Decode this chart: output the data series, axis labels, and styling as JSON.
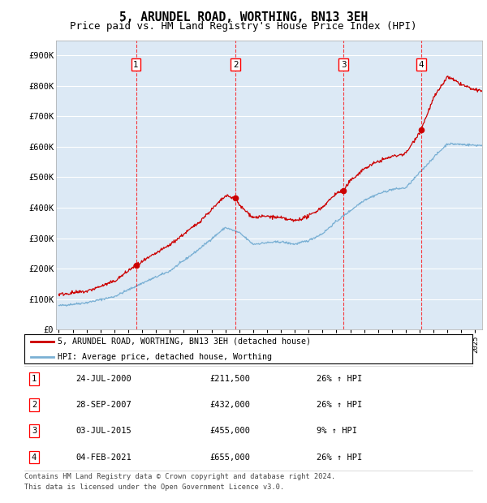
{
  "title": "5, ARUNDEL ROAD, WORTHING, BN13 3EH",
  "subtitle": "Price paid vs. HM Land Registry's House Price Index (HPI)",
  "ylim": [
    0,
    950000
  ],
  "yticks": [
    0,
    100000,
    200000,
    300000,
    400000,
    500000,
    600000,
    700000,
    800000,
    900000
  ],
  "ytick_labels": [
    "£0",
    "£100K",
    "£200K",
    "£300K",
    "£400K",
    "£500K",
    "£600K",
    "£700K",
    "£800K",
    "£900K"
  ],
  "xlim_start": 1994.8,
  "xlim_end": 2025.5,
  "plot_bg_color": "#dce9f5",
  "red_line_color": "#cc0000",
  "blue_line_color": "#7ab0d4",
  "transaction_dates": [
    2000.56,
    2007.74,
    2015.5,
    2021.09
  ],
  "transaction_prices": [
    211500,
    432000,
    455000,
    655000
  ],
  "transaction_labels": [
    "1",
    "2",
    "3",
    "4"
  ],
  "legend_entries": [
    "5, ARUNDEL ROAD, WORTHING, BN13 3EH (detached house)",
    "HPI: Average price, detached house, Worthing"
  ],
  "table_entries": [
    {
      "num": "1",
      "date": "24-JUL-2000",
      "price": "£211,500",
      "change": "26% ↑ HPI"
    },
    {
      "num": "2",
      "date": "28-SEP-2007",
      "price": "£432,000",
      "change": "26% ↑ HPI"
    },
    {
      "num": "3",
      "date": "03-JUL-2015",
      "price": "£455,000",
      "change": "9% ↑ HPI"
    },
    {
      "num": "4",
      "date": "04-FEB-2021",
      "price": "£655,000",
      "change": "26% ↑ HPI"
    }
  ],
  "footnote1": "Contains HM Land Registry data © Crown copyright and database right 2024.",
  "footnote2": "This data is licensed under the Open Government Licence v3.0.",
  "title_fontsize": 10.5,
  "subtitle_fontsize": 9
}
